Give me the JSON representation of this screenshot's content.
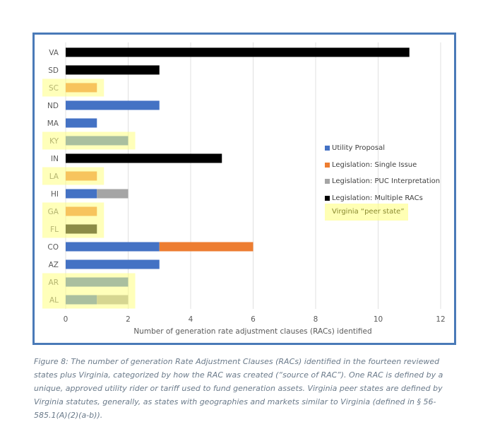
{
  "chart_data": {
    "type": "bar",
    "orientation": "horizontal",
    "stacked": true,
    "categories": [
      "VA",
      "SD",
      "SC",
      "ND",
      "MA",
      "KY",
      "IN",
      "LA",
      "HI",
      "GA",
      "FL",
      "CO",
      "AZ",
      "AR",
      "AL"
    ],
    "peer_states": [
      "SC",
      "KY",
      "LA",
      "GA",
      "FL",
      "AR",
      "AL"
    ],
    "series": [
      {
        "name": "Utility Proposal",
        "color": "#4472c4",
        "values": [
          0,
          0,
          0,
          3,
          1,
          2,
          0,
          0,
          1,
          0,
          0,
          3,
          3,
          2,
          1
        ]
      },
      {
        "name": "Legislation: Single Issue",
        "color": "#ed7d31",
        "values": [
          0,
          0,
          1,
          0,
          0,
          0,
          0,
          1,
          0,
          1,
          0,
          3,
          0,
          0,
          0
        ]
      },
      {
        "name": "Legislation: PUC Interpretation",
        "color": "#a5a5a5",
        "values": [
          0,
          0,
          0,
          0,
          0,
          0,
          0,
          0,
          1,
          0,
          0,
          0,
          0,
          0,
          1
        ]
      },
      {
        "name": "Legislation: Multiple RACs",
        "color": "#000000",
        "values": [
          11,
          3,
          0,
          0,
          0,
          0,
          5,
          0,
          0,
          0,
          1,
          0,
          0,
          0,
          0
        ]
      }
    ],
    "xlabel": "Number of generation rate adjustment clauses (RACs) identified",
    "xlim": [
      0,
      12
    ],
    "xticks": [
      "0",
      "2",
      "4",
      "6",
      "8",
      "10",
      "12"
    ],
    "grid": true,
    "legend_placement": "right",
    "peer_label": "Virginia “peer state”"
  },
  "caption": "Figure 8: The number of generation Rate Adjustment Clauses (RACs) identified in the fourteen reviewed states plus Virginia, categorized by how the RAC was created (“source of RAC”). One RAC is defined by a unique, approved utility rider or tariff used to fund generation assets. Virginia peer states are defined by Virginia statutes, generally, as states with geographies and markets similar to Virginia (defined in § 56-585.1(A)(2)(a-b))."
}
